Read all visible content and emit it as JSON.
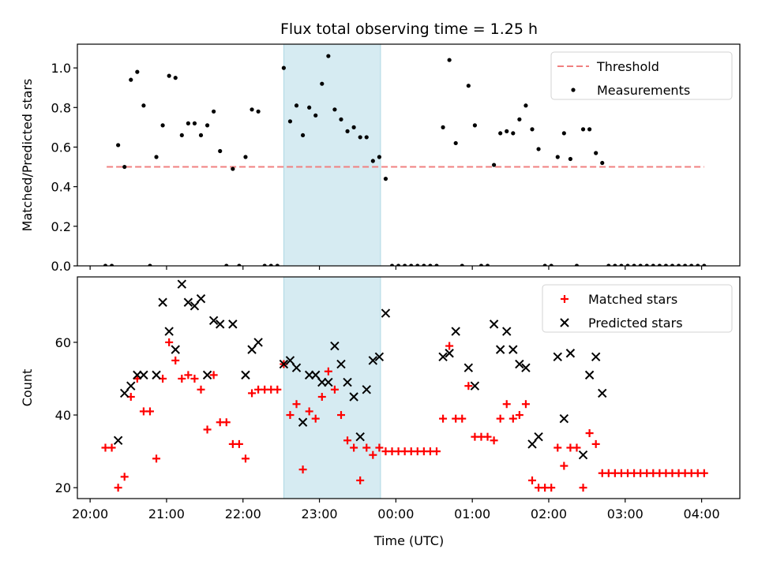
{
  "chart_data": [
    {
      "type": "scatter",
      "title": "Flux total observing time = 1.25 h",
      "xlabel": "",
      "ylabel": "Matched/Predicted stars",
      "ylim": [
        0,
        1.12
      ],
      "xlim": [
        "19:50",
        "04:30"
      ],
      "yticks": [
        "0.0",
        "0.2",
        "0.4",
        "0.6",
        "0.8",
        "1.0"
      ],
      "shaded_interval": [
        "22:32",
        "23:48"
      ],
      "legend": {
        "placement": "top-right",
        "entries": [
          "Threshold",
          "Measurements"
        ]
      },
      "threshold": {
        "name": "Threshold",
        "value": 0.5,
        "x_range": [
          "20:13",
          "04:02"
        ],
        "color": "#f08080"
      },
      "series": [
        {
          "name": "Measurements",
          "color": "#000000",
          "points": [
            [
              "20:12",
              0.0
            ],
            [
              "20:17",
              0.0
            ],
            [
              "20:22",
              0.61
            ],
            [
              "20:27",
              0.5
            ],
            [
              "20:32",
              0.94
            ],
            [
              "20:37",
              0.98
            ],
            [
              "20:42",
              0.81
            ],
            [
              "20:47",
              0.0
            ],
            [
              "20:52",
              0.55
            ],
            [
              "20:57",
              0.71
            ],
            [
              "21:02",
              0.96
            ],
            [
              "21:07",
              0.95
            ],
            [
              "21:12",
              0.66
            ],
            [
              "21:17",
              0.72
            ],
            [
              "21:22",
              0.72
            ],
            [
              "21:27",
              0.66
            ],
            [
              "21:32",
              0.71
            ],
            [
              "21:37",
              0.78
            ],
            [
              "21:42",
              0.58
            ],
            [
              "21:47",
              0.0
            ],
            [
              "21:52",
              0.49
            ],
            [
              "21:57",
              0.0
            ],
            [
              "22:02",
              0.55
            ],
            [
              "22:07",
              0.79
            ],
            [
              "22:12",
              0.78
            ],
            [
              "22:17",
              0.0
            ],
            [
              "22:22",
              0.0
            ],
            [
              "22:27",
              0.0
            ],
            [
              "22:32",
              1.0
            ],
            [
              "22:37",
              0.73
            ],
            [
              "22:42",
              0.81
            ],
            [
              "22:47",
              0.66
            ],
            [
              "22:52",
              0.8
            ],
            [
              "22:57",
              0.76
            ],
            [
              "23:02",
              0.92
            ],
            [
              "23:07",
              1.06
            ],
            [
              "23:12",
              0.79
            ],
            [
              "23:17",
              0.74
            ],
            [
              "23:22",
              0.68
            ],
            [
              "23:27",
              0.7
            ],
            [
              "23:32",
              0.65
            ],
            [
              "23:37",
              0.65
            ],
            [
              "23:42",
              0.53
            ],
            [
              "23:47",
              0.55
            ],
            [
              "23:52",
              0.44
            ],
            [
              "23:57",
              0.0
            ],
            [
              "00:02",
              0.0
            ],
            [
              "00:07",
              0.0
            ],
            [
              "00:12",
              0.0
            ],
            [
              "00:17",
              0.0
            ],
            [
              "00:22",
              0.0
            ],
            [
              "00:27",
              0.0
            ],
            [
              "00:32",
              0.0
            ],
            [
              "00:37",
              0.7
            ],
            [
              "00:42",
              1.04
            ],
            [
              "00:47",
              0.62
            ],
            [
              "00:52",
              0.0
            ],
            [
              "00:57",
              0.91
            ],
            [
              "01:02",
              0.71
            ],
            [
              "01:07",
              0.0
            ],
            [
              "01:12",
              0.0
            ],
            [
              "01:17",
              0.51
            ],
            [
              "01:22",
              0.67
            ],
            [
              "01:27",
              0.68
            ],
            [
              "01:32",
              0.67
            ],
            [
              "01:37",
              0.74
            ],
            [
              "01:42",
              0.81
            ],
            [
              "01:47",
              0.69
            ],
            [
              "01:52",
              0.59
            ],
            [
              "01:57",
              0.0
            ],
            [
              "02:02",
              0.0
            ],
            [
              "02:07",
              0.55
            ],
            [
              "02:12",
              0.67
            ],
            [
              "02:17",
              0.54
            ],
            [
              "02:22",
              0.0
            ],
            [
              "02:27",
              0.69
            ],
            [
              "02:32",
              0.69
            ],
            [
              "02:37",
              0.57
            ],
            [
              "02:42",
              0.52
            ],
            [
              "02:47",
              0.0
            ],
            [
              "02:52",
              0.0
            ],
            [
              "02:57",
              0.0
            ],
            [
              "03:02",
              0.0
            ],
            [
              "03:07",
              0.0
            ],
            [
              "03:12",
              0.0
            ],
            [
              "03:17",
              0.0
            ],
            [
              "03:22",
              0.0
            ],
            [
              "03:27",
              0.0
            ],
            [
              "03:32",
              0.0
            ],
            [
              "03:37",
              0.0
            ],
            [
              "03:42",
              0.0
            ],
            [
              "03:47",
              0.0
            ],
            [
              "03:52",
              0.0
            ],
            [
              "03:57",
              0.0
            ],
            [
              "04:02",
              0.0
            ]
          ]
        }
      ]
    },
    {
      "type": "scatter",
      "title": "",
      "xlabel": "Time (UTC)",
      "ylabel": "Count",
      "ylim": [
        17,
        78
      ],
      "xlim": [
        "19:50",
        "04:30"
      ],
      "xticks": [
        "20:00",
        "21:00",
        "22:00",
        "23:00",
        "00:00",
        "01:00",
        "02:00",
        "03:00",
        "04:00"
      ],
      "yticks": [
        "20",
        "40",
        "60"
      ],
      "shaded_interval": [
        "22:32",
        "23:48"
      ],
      "legend": {
        "placement": "top-right",
        "entries": [
          "Matched stars",
          "Predicted stars"
        ]
      },
      "series": [
        {
          "name": "Matched stars",
          "marker": "plus",
          "color": "#ff0000",
          "points": [
            [
              "20:12",
              31
            ],
            [
              "20:17",
              31
            ],
            [
              "20:22",
              20
            ],
            [
              "20:27",
              23
            ],
            [
              "20:32",
              45
            ],
            [
              "20:37",
              50
            ],
            [
              "20:42",
              41
            ],
            [
              "20:47",
              41
            ],
            [
              "20:52",
              28
            ],
            [
              "20:57",
              50
            ],
            [
              "21:02",
              60
            ],
            [
              "21:07",
              55
            ],
            [
              "21:12",
              50
            ],
            [
              "21:17",
              51
            ],
            [
              "21:22",
              50
            ],
            [
              "21:27",
              47
            ],
            [
              "21:32",
              36
            ],
            [
              "21:37",
              51
            ],
            [
              "21:42",
              38
            ],
            [
              "21:47",
              38
            ],
            [
              "21:52",
              32
            ],
            [
              "21:57",
              32
            ],
            [
              "22:02",
              28
            ],
            [
              "22:07",
              46
            ],
            [
              "22:12",
              47
            ],
            [
              "22:17",
              47
            ],
            [
              "22:22",
              47
            ],
            [
              "22:27",
              47
            ],
            [
              "22:32",
              54
            ],
            [
              "22:37",
              40
            ],
            [
              "22:42",
              43
            ],
            [
              "22:47",
              25
            ],
            [
              "22:52",
              41
            ],
            [
              "22:57",
              39
            ],
            [
              "23:02",
              45
            ],
            [
              "23:07",
              52
            ],
            [
              "23:12",
              47
            ],
            [
              "23:17",
              40
            ],
            [
              "23:22",
              33
            ],
            [
              "23:27",
              31
            ],
            [
              "23:32",
              22
            ],
            [
              "23:37",
              31
            ],
            [
              "23:42",
              29
            ],
            [
              "23:47",
              31
            ],
            [
              "23:52",
              30
            ],
            [
              "23:57",
              30
            ],
            [
              "00:02",
              30
            ],
            [
              "00:07",
              30
            ],
            [
              "00:12",
              30
            ],
            [
              "00:17",
              30
            ],
            [
              "00:22",
              30
            ],
            [
              "00:27",
              30
            ],
            [
              "00:32",
              30
            ],
            [
              "00:37",
              39
            ],
            [
              "00:42",
              59
            ],
            [
              "00:47",
              39
            ],
            [
              "00:52",
              39
            ],
            [
              "00:57",
              48
            ],
            [
              "01:02",
              34
            ],
            [
              "01:07",
              34
            ],
            [
              "01:12",
              34
            ],
            [
              "01:17",
              33
            ],
            [
              "01:22",
              39
            ],
            [
              "01:27",
              43
            ],
            [
              "01:32",
              39
            ],
            [
              "01:37",
              40
            ],
            [
              "01:42",
              43
            ],
            [
              "01:47",
              22
            ],
            [
              "01:52",
              20
            ],
            [
              "01:57",
              20
            ],
            [
              "02:02",
              20
            ],
            [
              "02:07",
              31
            ],
            [
              "02:12",
              26
            ],
            [
              "02:17",
              31
            ],
            [
              "02:22",
              31
            ],
            [
              "02:27",
              20
            ],
            [
              "02:32",
              35
            ],
            [
              "02:37",
              32
            ],
            [
              "02:42",
              24
            ],
            [
              "02:47",
              24
            ],
            [
              "02:52",
              24
            ],
            [
              "02:57",
              24
            ],
            [
              "03:02",
              24
            ],
            [
              "03:07",
              24
            ],
            [
              "03:12",
              24
            ],
            [
              "03:17",
              24
            ],
            [
              "03:22",
              24
            ],
            [
              "03:27",
              24
            ],
            [
              "03:32",
              24
            ],
            [
              "03:37",
              24
            ],
            [
              "03:42",
              24
            ],
            [
              "03:47",
              24
            ],
            [
              "03:52",
              24
            ],
            [
              "03:57",
              24
            ],
            [
              "04:02",
              24
            ]
          ]
        },
        {
          "name": "Predicted stars",
          "marker": "x",
          "color": "#000000",
          "points": [
            [
              "20:22",
              33
            ],
            [
              "20:27",
              46
            ],
            [
              "20:32",
              48
            ],
            [
              "20:37",
              51
            ],
            [
              "20:42",
              51
            ],
            [
              "20:52",
              51
            ],
            [
              "20:57",
              71
            ],
            [
              "21:02",
              63
            ],
            [
              "21:07",
              58
            ],
            [
              "21:12",
              76
            ],
            [
              "21:17",
              71
            ],
            [
              "21:22",
              70
            ],
            [
              "21:27",
              72
            ],
            [
              "21:32",
              51
            ],
            [
              "21:37",
              66
            ],
            [
              "21:42",
              65
            ],
            [
              "21:52",
              65
            ],
            [
              "22:02",
              51
            ],
            [
              "22:07",
              58
            ],
            [
              "22:12",
              60
            ],
            [
              "22:32",
              54
            ],
            [
              "22:37",
              55
            ],
            [
              "22:42",
              53
            ],
            [
              "22:47",
              38
            ],
            [
              "22:52",
              51
            ],
            [
              "22:57",
              51
            ],
            [
              "23:02",
              49
            ],
            [
              "23:07",
              49
            ],
            [
              "23:12",
              59
            ],
            [
              "23:17",
              54
            ],
            [
              "23:22",
              49
            ],
            [
              "23:27",
              45
            ],
            [
              "23:32",
              34
            ],
            [
              "23:37",
              47
            ],
            [
              "23:42",
              55
            ],
            [
              "23:47",
              56
            ],
            [
              "23:52",
              68
            ],
            [
              "00:37",
              56
            ],
            [
              "00:42",
              57
            ],
            [
              "00:47",
              63
            ],
            [
              "00:57",
              53
            ],
            [
              "01:02",
              48
            ],
            [
              "01:17",
              65
            ],
            [
              "01:22",
              58
            ],
            [
              "01:27",
              63
            ],
            [
              "01:32",
              58
            ],
            [
              "01:37",
              54
            ],
            [
              "01:42",
              53
            ],
            [
              "01:47",
              32
            ],
            [
              "01:52",
              34
            ],
            [
              "02:07",
              56
            ],
            [
              "02:12",
              39
            ],
            [
              "02:17",
              57
            ],
            [
              "02:27",
              29
            ],
            [
              "02:32",
              51
            ],
            [
              "02:37",
              56
            ],
            [
              "02:42",
              46
            ]
          ]
        }
      ]
    }
  ]
}
